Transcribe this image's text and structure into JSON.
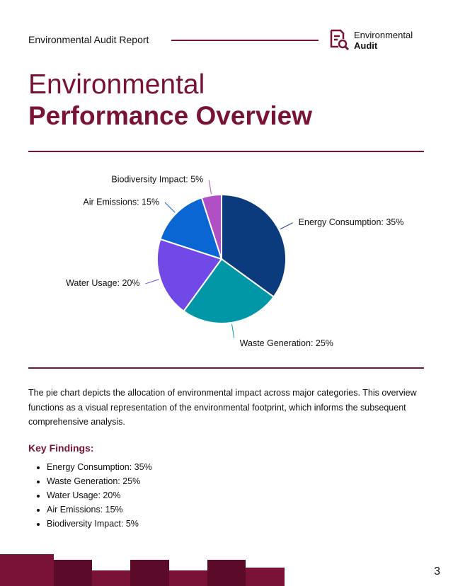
{
  "header": {
    "report_title": "Environmental Audit Report",
    "logo_line1": "Environmental",
    "logo_line2": "Audit"
  },
  "title": {
    "line1": "Environmental",
    "line2": "Performance Overview"
  },
  "chart_data": {
    "type": "pie",
    "categories": [
      "Energy Consumption",
      "Waste Generation",
      "Water Usage",
      "Air Emissions",
      "Biodiversity Impact"
    ],
    "values": [
      35,
      25,
      20,
      15,
      5
    ],
    "value_labels": [
      "Energy Consumption: 35%",
      "Waste Generation: 25%",
      "Water Usage: 20%",
      "Air Emissions: 15%",
      "Biodiversity Impact: 5%"
    ],
    "colors": [
      "#0b3b7c",
      "#0197a6",
      "#7149e6",
      "#0a66d2",
      "#b14fc5"
    ]
  },
  "description": "The pie chart depicts the allocation of environmental impact across major categories. This overview functions as a visual representation of the environmental footprint, which informs the subsequent comprehensive analysis.",
  "findings": {
    "heading": "Key Findings:",
    "items": [
      "Energy Consumption: 35%",
      "Waste Generation: 25%",
      "Water Usage: 20%",
      "Air Emissions: 15%",
      "Biodiversity Impact: 5%"
    ]
  },
  "page_number": "3"
}
